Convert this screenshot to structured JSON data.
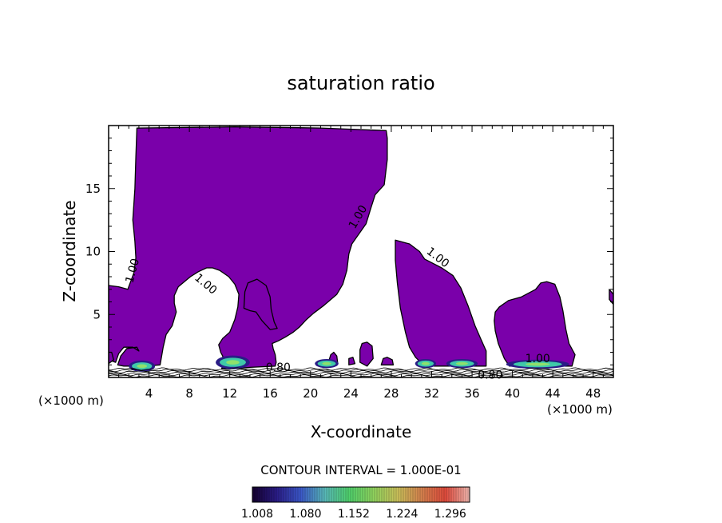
{
  "chart_data": {
    "type": "contour",
    "title": "saturation ratio",
    "xlabel": "X-coordinate",
    "ylabel": "Z-coordinate",
    "x_unit_label": "(×1000 m)",
    "xlim": [
      0,
      50
    ],
    "ylim": [
      0,
      20
    ],
    "x_ticks": [
      4,
      8,
      12,
      16,
      20,
      24,
      28,
      32,
      36,
      40,
      44,
      48
    ],
    "y_ticks": [
      5,
      10,
      15
    ],
    "contour_interval_label": "CONTOUR INTERVAL = 1.000E-01",
    "contour_labels": [
      {
        "text": "1.00",
        "x": 2.7,
        "y": 8.4,
        "angle": -75
      },
      {
        "text": "1.00",
        "x": 9.4,
        "y": 7.2,
        "angle": 40
      },
      {
        "text": "1.00",
        "x": 25.0,
        "y": 12.6,
        "angle": -60
      },
      {
        "text": "1.00",
        "x": 32.4,
        "y": 9.3,
        "angle": 38
      },
      {
        "text": "1.00",
        "x": 42.5,
        "y": 1.2,
        "angle": 0
      },
      {
        "text": "0.80",
        "x": 16.8,
        "y": 0.5,
        "angle": 0
      },
      {
        "text": "0.80",
        "x": 37.8,
        "y": -0.1,
        "angle": 0
      }
    ],
    "fill_regions": [
      [
        [
          0,
          7.3
        ],
        [
          1.0,
          7.2
        ],
        [
          1.9,
          7.0
        ],
        [
          2.5,
          8.3
        ],
        [
          2.7,
          9.5
        ],
        [
          2.6,
          10.8
        ],
        [
          2.4,
          12.5
        ],
        [
          2.6,
          15.0
        ],
        [
          2.7,
          17.5
        ],
        [
          2.8,
          19.8
        ],
        [
          12.5,
          19.9
        ],
        [
          21.0,
          19.8
        ],
        [
          27.5,
          19.6
        ],
        [
          27.6,
          19.0
        ],
        [
          27.6,
          17.3
        ],
        [
          27.3,
          15.3
        ],
        [
          26.4,
          14.5
        ],
        [
          26.0,
          13.5
        ],
        [
          25.5,
          12.2
        ],
        [
          24.8,
          11.4
        ],
        [
          24.1,
          10.6
        ],
        [
          23.8,
          9.8
        ],
        [
          23.6,
          8.5
        ],
        [
          23.2,
          7.4
        ],
        [
          22.6,
          6.6
        ],
        [
          21.3,
          5.7
        ],
        [
          20.3,
          5.1
        ],
        [
          19.6,
          4.6
        ],
        [
          18.9,
          4.0
        ],
        [
          18.3,
          3.6
        ],
        [
          17.5,
          3.2
        ],
        [
          16.8,
          2.9
        ],
        [
          16.2,
          2.7
        ],
        [
          16.3,
          2.3
        ],
        [
          16.5,
          1.8
        ],
        [
          16.6,
          1.2
        ],
        [
          16.5,
          0.9
        ],
        [
          14.0,
          0.8
        ],
        [
          12.5,
          0.7
        ],
        [
          11.2,
          0.7
        ],
        [
          11.4,
          1.1
        ],
        [
          11.3,
          1.7
        ],
        [
          11.1,
          2.0
        ],
        [
          10.9,
          2.6
        ],
        [
          11.3,
          3.1
        ],
        [
          12.0,
          3.6
        ],
        [
          12.5,
          4.6
        ],
        [
          12.8,
          5.6
        ],
        [
          12.9,
          6.6
        ],
        [
          12.5,
          7.4
        ],
        [
          11.9,
          8.0
        ],
        [
          11.0,
          8.5
        ],
        [
          10.3,
          8.7
        ],
        [
          9.7,
          8.7
        ],
        [
          8.9,
          8.4
        ],
        [
          8.1,
          8.0
        ],
        [
          6.9,
          7.2
        ],
        [
          6.5,
          6.5
        ],
        [
          6.5,
          5.9
        ],
        [
          6.7,
          5.2
        ],
        [
          6.3,
          4.1
        ],
        [
          5.7,
          3.4
        ],
        [
          5.4,
          2.4
        ],
        [
          5.1,
          1.0
        ],
        [
          3.5,
          0.9
        ],
        [
          1.5,
          0.9
        ],
        [
          0.9,
          1.0
        ],
        [
          1.2,
          1.7
        ],
        [
          1.8,
          2.3
        ],
        [
          2.8,
          2.4
        ],
        [
          3.0,
          2.1
        ],
        [
          2.4,
          2.4
        ],
        [
          1.5,
          2.4
        ],
        [
          1.0,
          1.9
        ],
        [
          0.7,
          1.2
        ],
        [
          0,
          1.4
        ]
      ],
      [
        [
          13.4,
          5.5
        ],
        [
          13.5,
          6.8
        ],
        [
          13.8,
          7.5
        ],
        [
          14.7,
          7.8
        ],
        [
          15.6,
          7.3
        ],
        [
          16.0,
          6.4
        ],
        [
          16.1,
          5.4
        ],
        [
          16.4,
          4.4
        ],
        [
          16.7,
          3.9
        ],
        [
          16.0,
          3.8
        ],
        [
          15.2,
          4.5
        ],
        [
          14.6,
          5.2
        ],
        [
          14.0,
          5.3
        ]
      ],
      [
        [
          28.4,
          10.9
        ],
        [
          29.8,
          10.6
        ],
        [
          30.8,
          10.0
        ],
        [
          31.3,
          9.4
        ],
        [
          33.0,
          8.7
        ],
        [
          34.1,
          8.1
        ],
        [
          34.9,
          7.1
        ],
        [
          35.6,
          5.7
        ],
        [
          36.3,
          4.1
        ],
        [
          36.9,
          3.0
        ],
        [
          37.4,
          2.1
        ],
        [
          37.4,
          0.9
        ],
        [
          32.8,
          0.9
        ],
        [
          31.3,
          0.9
        ],
        [
          30.4,
          1.6
        ],
        [
          29.8,
          2.4
        ],
        [
          29.4,
          3.6
        ],
        [
          28.9,
          5.5
        ],
        [
          28.6,
          7.5
        ],
        [
          28.4,
          9.3
        ]
      ],
      [
        [
          38.3,
          5.2
        ],
        [
          38.7,
          5.6
        ],
        [
          39.6,
          6.1
        ],
        [
          40.9,
          6.4
        ],
        [
          42.3,
          7.0
        ],
        [
          42.8,
          7.5
        ],
        [
          43.4,
          7.6
        ],
        [
          44.2,
          7.4
        ],
        [
          44.7,
          6.4
        ],
        [
          45.0,
          5.3
        ],
        [
          45.3,
          3.8
        ],
        [
          45.6,
          2.7
        ],
        [
          46.2,
          1.8
        ],
        [
          45.9,
          0.9
        ],
        [
          42.0,
          0.9
        ],
        [
          39.7,
          0.9
        ],
        [
          39.2,
          1.5
        ],
        [
          38.6,
          2.7
        ],
        [
          38.3,
          3.7
        ],
        [
          38.2,
          4.5
        ]
      ],
      [
        [
          24.9,
          1.2
        ],
        [
          24.9,
          2.2
        ],
        [
          25.1,
          2.7
        ],
        [
          25.6,
          2.8
        ],
        [
          26.1,
          2.5
        ],
        [
          26.2,
          1.5
        ],
        [
          25.6,
          0.9
        ]
      ],
      [
        [
          21.7,
          1.0
        ],
        [
          22.0,
          1.8
        ],
        [
          22.3,
          2.0
        ],
        [
          22.6,
          1.7
        ],
        [
          22.7,
          1.1
        ]
      ],
      [
        [
          23.8,
          1.0
        ],
        [
          23.8,
          1.5
        ],
        [
          24.2,
          1.6
        ],
        [
          24.4,
          1.1
        ]
      ],
      [
        [
          27.0,
          1.0
        ],
        [
          27.2,
          1.5
        ],
        [
          27.6,
          1.6
        ],
        [
          28.1,
          1.4
        ],
        [
          28.2,
          1.0
        ]
      ],
      [
        [
          0,
          2.0
        ],
        [
          0.3,
          2.0
        ],
        [
          0.5,
          1.4
        ],
        [
          0,
          1.1
        ]
      ],
      [
        [
          49.6,
          7.0
        ],
        [
          50,
          6.6
        ],
        [
          50,
          5.8
        ],
        [
          49.6,
          6.2
        ]
      ]
    ],
    "colorbar": {
      "min": 1.008,
      "max": 1.332,
      "tick_labels": [
        "1.008",
        "1.080",
        "1.152",
        "1.224",
        "1.296"
      ],
      "tick_values": [
        1.008,
        1.08,
        1.152,
        1.224,
        1.296
      ]
    },
    "colors": {
      "fill": "#7a00aa",
      "line": "#000000",
      "colorbar_stops": [
        "#14002e",
        "#2a1c86",
        "#3b57c8",
        "#58b8b8",
        "#4fd06c",
        "#8fd35e",
        "#c9c05a",
        "#d5824e",
        "#e04a3c",
        "#f0b8b0"
      ]
    }
  }
}
